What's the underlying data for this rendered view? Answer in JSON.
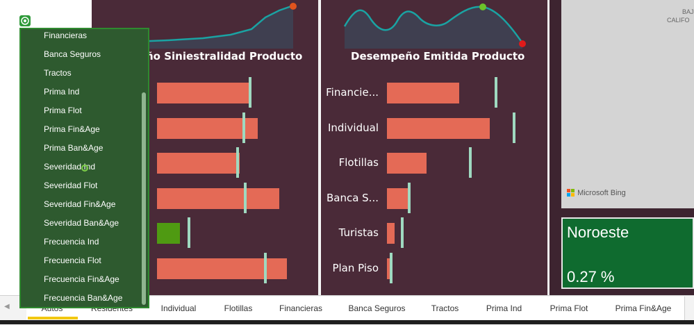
{
  "left_card": {
    "title": "ño Siniestralidad Producto",
    "bars": [
      {
        "value": 0.62,
        "target": 0.6
      },
      {
        "value": 0.66,
        "target": 0.56
      },
      {
        "value": 0.54,
        "target": 0.52
      },
      {
        "value": 0.8,
        "target": 0.57
      },
      {
        "value": 0.15,
        "target": 0.2,
        "highlight": true
      },
      {
        "value": 0.85,
        "target": 0.7
      }
    ]
  },
  "right_card": {
    "title": "Desempeño Emitida Producto",
    "rows": [
      {
        "label": "Financie...",
        "value": 0.56,
        "target": 0.84
      },
      {
        "label": "Individual",
        "value": 0.8,
        "target": 0.98
      },
      {
        "label": "Flotillas",
        "value": 0.31,
        "target": 0.64
      },
      {
        "label": "Banca S...",
        "value": 0.16,
        "target": 0.16
      },
      {
        "label": "Turistas",
        "value": 0.06,
        "target": 0.11
      },
      {
        "label": "Plan Piso",
        "value": 0.02,
        "target": 0.02
      }
    ]
  },
  "map": {
    "label_top": "BAJ",
    "label_sub": "CALIFO",
    "bing_label": "Microsoft Bing"
  },
  "region_card": {
    "name": "Noroeste",
    "value": "0.27 %"
  },
  "dropdown": {
    "items": [
      "Financieras",
      "Banca Seguros",
      "Tractos",
      "Prima Ind",
      "Prima Flot",
      "Prima Fin&Age",
      "Prima Ban&Age",
      "Severidad Ind",
      "Severidad Flot",
      "Severidad Fin&Age",
      "Severidad Ban&Age",
      "Frecuencia Ind",
      "Frecuencia Flot",
      "Frecuencia Fin&Age",
      "Frecuencia Ban&Age"
    ]
  },
  "tabs": [
    "Autos",
    "Residentes",
    "Individual",
    "Flotillas",
    "Financieras",
    "Banca Seguros",
    "Tractos",
    "Prima Ind",
    "Prima Flot",
    "Prima Fin&Age"
  ],
  "colors": {
    "panel_bg": "#4a2a38",
    "bar": "#e46a56",
    "target": "#9fd9c0",
    "highlight": "#4f9a12",
    "line": "#1aa3a3",
    "region_bg": "#0f6b2f",
    "tab_active": "#f2c811"
  }
}
